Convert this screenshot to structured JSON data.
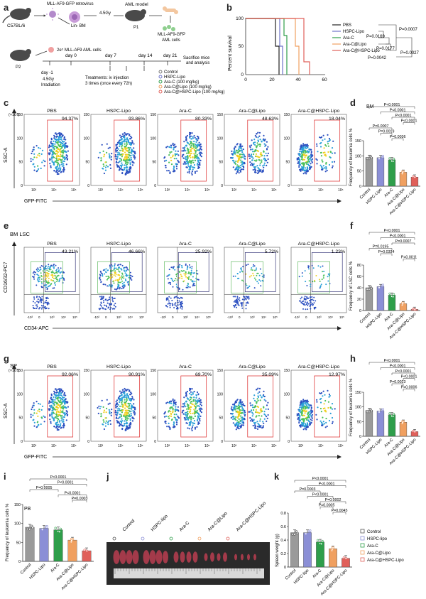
{
  "panels": {
    "a": "a",
    "b": "b",
    "c": "c",
    "d": "d",
    "e": "e",
    "f": "f",
    "g": "g",
    "h": "h",
    "i": "i",
    "j": "j",
    "k": "k"
  },
  "schematic": {
    "donor": "C57BL/6",
    "retrovirus": "MLL-AF9-GFP retrovirus",
    "linbm": "Lin- BM",
    "irradiation_top": "4.5Gy",
    "aml_model": "AML model",
    "p1": "P1",
    "aml_cells_top": "MLL-AF9-GFP",
    "aml_cells_top2": "AML cells",
    "p2": "P2",
    "inject": "2e⁵ MLL-AF9 AML cells",
    "day0": "day 0",
    "day7": "day 7",
    "day14": "day 14",
    "day21": "day 21",
    "sacrifice": "Sacrifice mice",
    "sacrifice2": "and analysis",
    "dayminus1": "day -1",
    "irr": "4.5Gy",
    "irr2": "Irradiation",
    "treat1": "Treatments: iv injection",
    "treat2": "3 times (once every 72h)",
    "legend": [
      "Control",
      "HSPC-Lipo",
      "Ara-C (100 mg/kg)",
      "Ara-C@Lipo (100 mg/kg)",
      "Ara-C@HSPC-Lipo (100 mg/kg)"
    ]
  },
  "survival": {
    "ylabel": "Percent survival",
    "yticks": [
      "0",
      "50",
      "100"
    ],
    "xticks": [
      "0",
      "20",
      "40",
      "60"
    ],
    "legend": [
      "PBS",
      "HSPC-Lipo",
      "Ara-C",
      "Ara-C@Lipo",
      "Ara-C@HSPC-Lipo"
    ],
    "pvals": [
      "P=0.0007",
      "P=0.0169",
      "P=0.0177",
      "P=0.0027",
      "P=0.0042"
    ]
  },
  "flow_c": {
    "ylabel": "SSC-A",
    "xlabel": "GFP-FITC",
    "yexp": "(×10⁴)",
    "plots": [
      {
        "title": "PBS",
        "pct": "94.37%"
      },
      {
        "title": "HSPC-Lipo",
        "pct": "93.86%"
      },
      {
        "title": "Ara-C",
        "pct": "80.33%"
      },
      {
        "title": "Ara-C@Lipo",
        "pct": "48.63%"
      },
      {
        "title": "Ara-C@HSPC-Lipo",
        "pct": "18.04%"
      }
    ]
  },
  "flow_e": {
    "header": "BM LSC",
    "ylabel": "CD16/32-PC7",
    "xlabel": "CD34-APC",
    "plots": [
      {
        "title": "PBS",
        "pct": "43.21%"
      },
      {
        "title": "HSPC-Lipo",
        "pct": "46.66%"
      },
      {
        "title": "Ara-C",
        "pct": "25.92%"
      },
      {
        "title": "Ara-C@Lipo",
        "pct": "5.72%"
      },
      {
        "title": "Ara-C@HSPC-Lipo",
        "pct": "1.23%"
      }
    ]
  },
  "flow_g": {
    "header": "SP",
    "ylabel": "SSC-A",
    "xlabel": "GFP-FITC",
    "yexp": "(×10⁴)",
    "plots": [
      {
        "title": "PBS",
        "pct": "92.06%"
      },
      {
        "title": "HSPC-Lipo",
        "pct": "90.91%"
      },
      {
        "title": "Ara-C",
        "pct": "69.70%"
      },
      {
        "title": "Ara-C@Lipo",
        "pct": "35.09%"
      },
      {
        "title": "Ara-C@HSPC-Lipo",
        "pct": "12.97%"
      }
    ]
  },
  "chart_data": [
    {
      "id": "d",
      "type": "bar",
      "title": "BM",
      "categories": [
        "Control",
        "HSPC-Lipo",
        "Ara-C",
        "Ara-C@Lipo",
        "Ara-C@HSPC-Lipo"
      ],
      "values": [
        95,
        94,
        87,
        46,
        30
      ],
      "ylabel": "Frequency of leukemia cells %",
      "ylim": [
        0,
        150
      ],
      "yticks": [
        "0",
        "50",
        "100",
        "150"
      ],
      "pvals": [
        "P<0.0001",
        "P<0.0001",
        "P<0.0001",
        "P<0.0001",
        "P=0.0007",
        "P=0.0019",
        "P=0.0036"
      ]
    },
    {
      "id": "f",
      "type": "bar",
      "categories": [
        "Control",
        "HSPC-Lipo",
        "Ara-C",
        "Ara-C@Lipo",
        "Ara-C@HSPC-Lipo"
      ],
      "values": [
        40,
        42,
        27,
        12,
        2
      ],
      "ylabel": "Frequency of LSC cells %",
      "ylim": [
        0,
        80
      ],
      "yticks": [
        "0",
        "20",
        "40",
        "60",
        "80"
      ],
      "pvals": [
        "P<0.0001",
        "P<0.0001",
        "P=0.0007",
        "P=0.0195",
        "P=0.0334",
        "P=0.0011"
      ]
    },
    {
      "id": "h",
      "type": "bar",
      "categories": [
        "Control",
        "HSPC-Lipo",
        "Ara-C",
        "Ara-C@Lipo",
        "Ara-C@HSPC-Lipo"
      ],
      "values": [
        88,
        86,
        73,
        48,
        16
      ],
      "ylabel": "Frequency of leukemia cells %",
      "ylim": [
        0,
        150
      ],
      "yticks": [
        "0",
        "50",
        "100",
        "150"
      ],
      "pvals": [
        "P<0.0001",
        "P<0.0001",
        "P<0.0001",
        "P<0.0001",
        "P=0.0023",
        "P=0.0006"
      ]
    },
    {
      "id": "i",
      "type": "bar",
      "title": "PB",
      "categories": [
        "Control",
        "HSPC-Lipo",
        "Ara-C",
        "Ara-C@Lipo",
        "Ara-C@HSPC-Lipo"
      ],
      "values": [
        90,
        87,
        83,
        56,
        28
      ],
      "ylabel": "Frequency of leukemia cells %",
      "ylim": [
        0,
        150
      ],
      "yticks": [
        "0",
        "50",
        "100",
        "150"
      ],
      "pvals": [
        "P<0.0001",
        "P<0.0001",
        "P=0.0005",
        "P<0.0001",
        "P=0.0003"
      ]
    },
    {
      "id": "k",
      "type": "bar",
      "categories": [
        "Control",
        "HSPC-lipo",
        "Ara-C",
        "Ara-C@Lipo",
        "Ara-C@HSPC-Lipo"
      ],
      "values": [
        0.51,
        0.51,
        0.37,
        0.27,
        0.13
      ],
      "ylabel": "Spleen weight (g)",
      "ylim": [
        0,
        0.8
      ],
      "yticks": [
        "0",
        "0.2",
        "0.4",
        "0.6",
        "0.8"
      ],
      "pvals": [
        "P<0.0001",
        "P<0.0001",
        "P=0.0003",
        "P<0.0001",
        "P=0.0002",
        "P=0.0005",
        "P=0.0045"
      ],
      "legend": [
        "Control",
        "HSPC-lipo",
        "Ara-C",
        "Ara-C@Lipo",
        "Ara-C@HSPC-Lipo"
      ]
    }
  ],
  "spleen_labels": [
    "Control",
    "HSPC-lipo",
    "Ara-C",
    "Ara-C@Lipo",
    "Ara-C@HSPC-Lipo"
  ],
  "colors": [
    "#9a9a9a",
    "#8b8fd6",
    "#2e9e4a",
    "#f0a060",
    "#e0605a"
  ]
}
